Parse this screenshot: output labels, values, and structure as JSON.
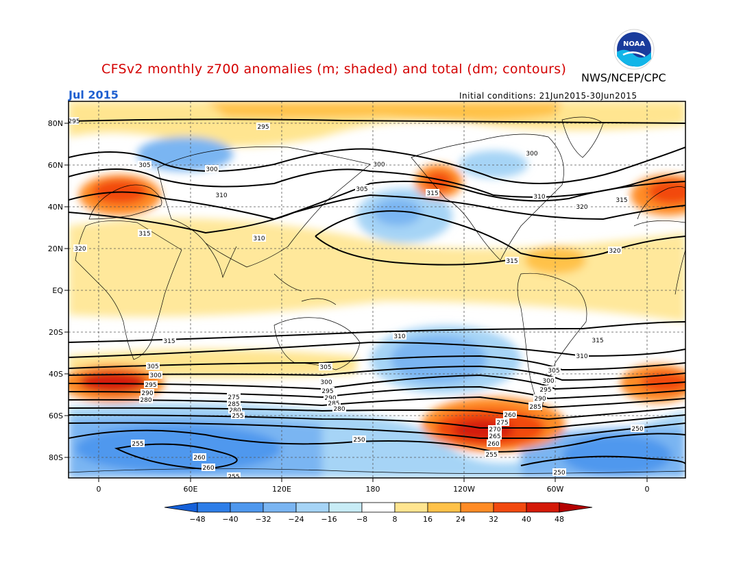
{
  "header": {
    "title": "CFSv2 monthly z700 anomalies (m; shaded) and total (dm; contours)",
    "agency": "NWS/NCEP/CPC",
    "logo_text": "NOAA",
    "period": "Jul 2015",
    "initial_conditions": "Initial conditions: 21Jun2015-30Jun2015"
  },
  "map": {
    "lat_labels": [
      "80N",
      "60N",
      "40N",
      "20N",
      "EQ",
      "20S",
      "40S",
      "60S",
      "80S"
    ],
    "lon_labels": [
      "0",
      "60E",
      "120E",
      "180",
      "120W",
      "60W",
      "0"
    ],
    "contour_labels": [
      "295",
      "305",
      "300",
      "295",
      "300",
      "310",
      "305",
      "315",
      "315",
      "310",
      "320",
      "300",
      "310",
      "320",
      "315",
      "320",
      "315",
      "315",
      "310",
      "315",
      "310",
      "305",
      "300",
      "295",
      "290",
      "280",
      "305",
      "300",
      "295",
      "290",
      "285",
      "280",
      "275",
      "285",
      "280",
      "255",
      "250",
      "255",
      "260",
      "260",
      "260",
      "275",
      "270",
      "265",
      "260",
      "255",
      "280",
      "285",
      "290",
      "295",
      "300",
      "305",
      "250",
      "250",
      "255"
    ]
  },
  "colorbar": {
    "labels": [
      "-48",
      "-40",
      "-32",
      "-24",
      "-16",
      "-8",
      "8",
      "16",
      "24",
      "32",
      "40",
      "48"
    ],
    "colors": [
      "#1560d8",
      "#2e7ee8",
      "#4f98ee",
      "#7ab5f2",
      "#a6d4f6",
      "#c8ecf6",
      "#ffffff",
      "#ffe590",
      "#ffc24a",
      "#ff8c26",
      "#f24a10",
      "#d41a08",
      "#b40000"
    ]
  }
}
